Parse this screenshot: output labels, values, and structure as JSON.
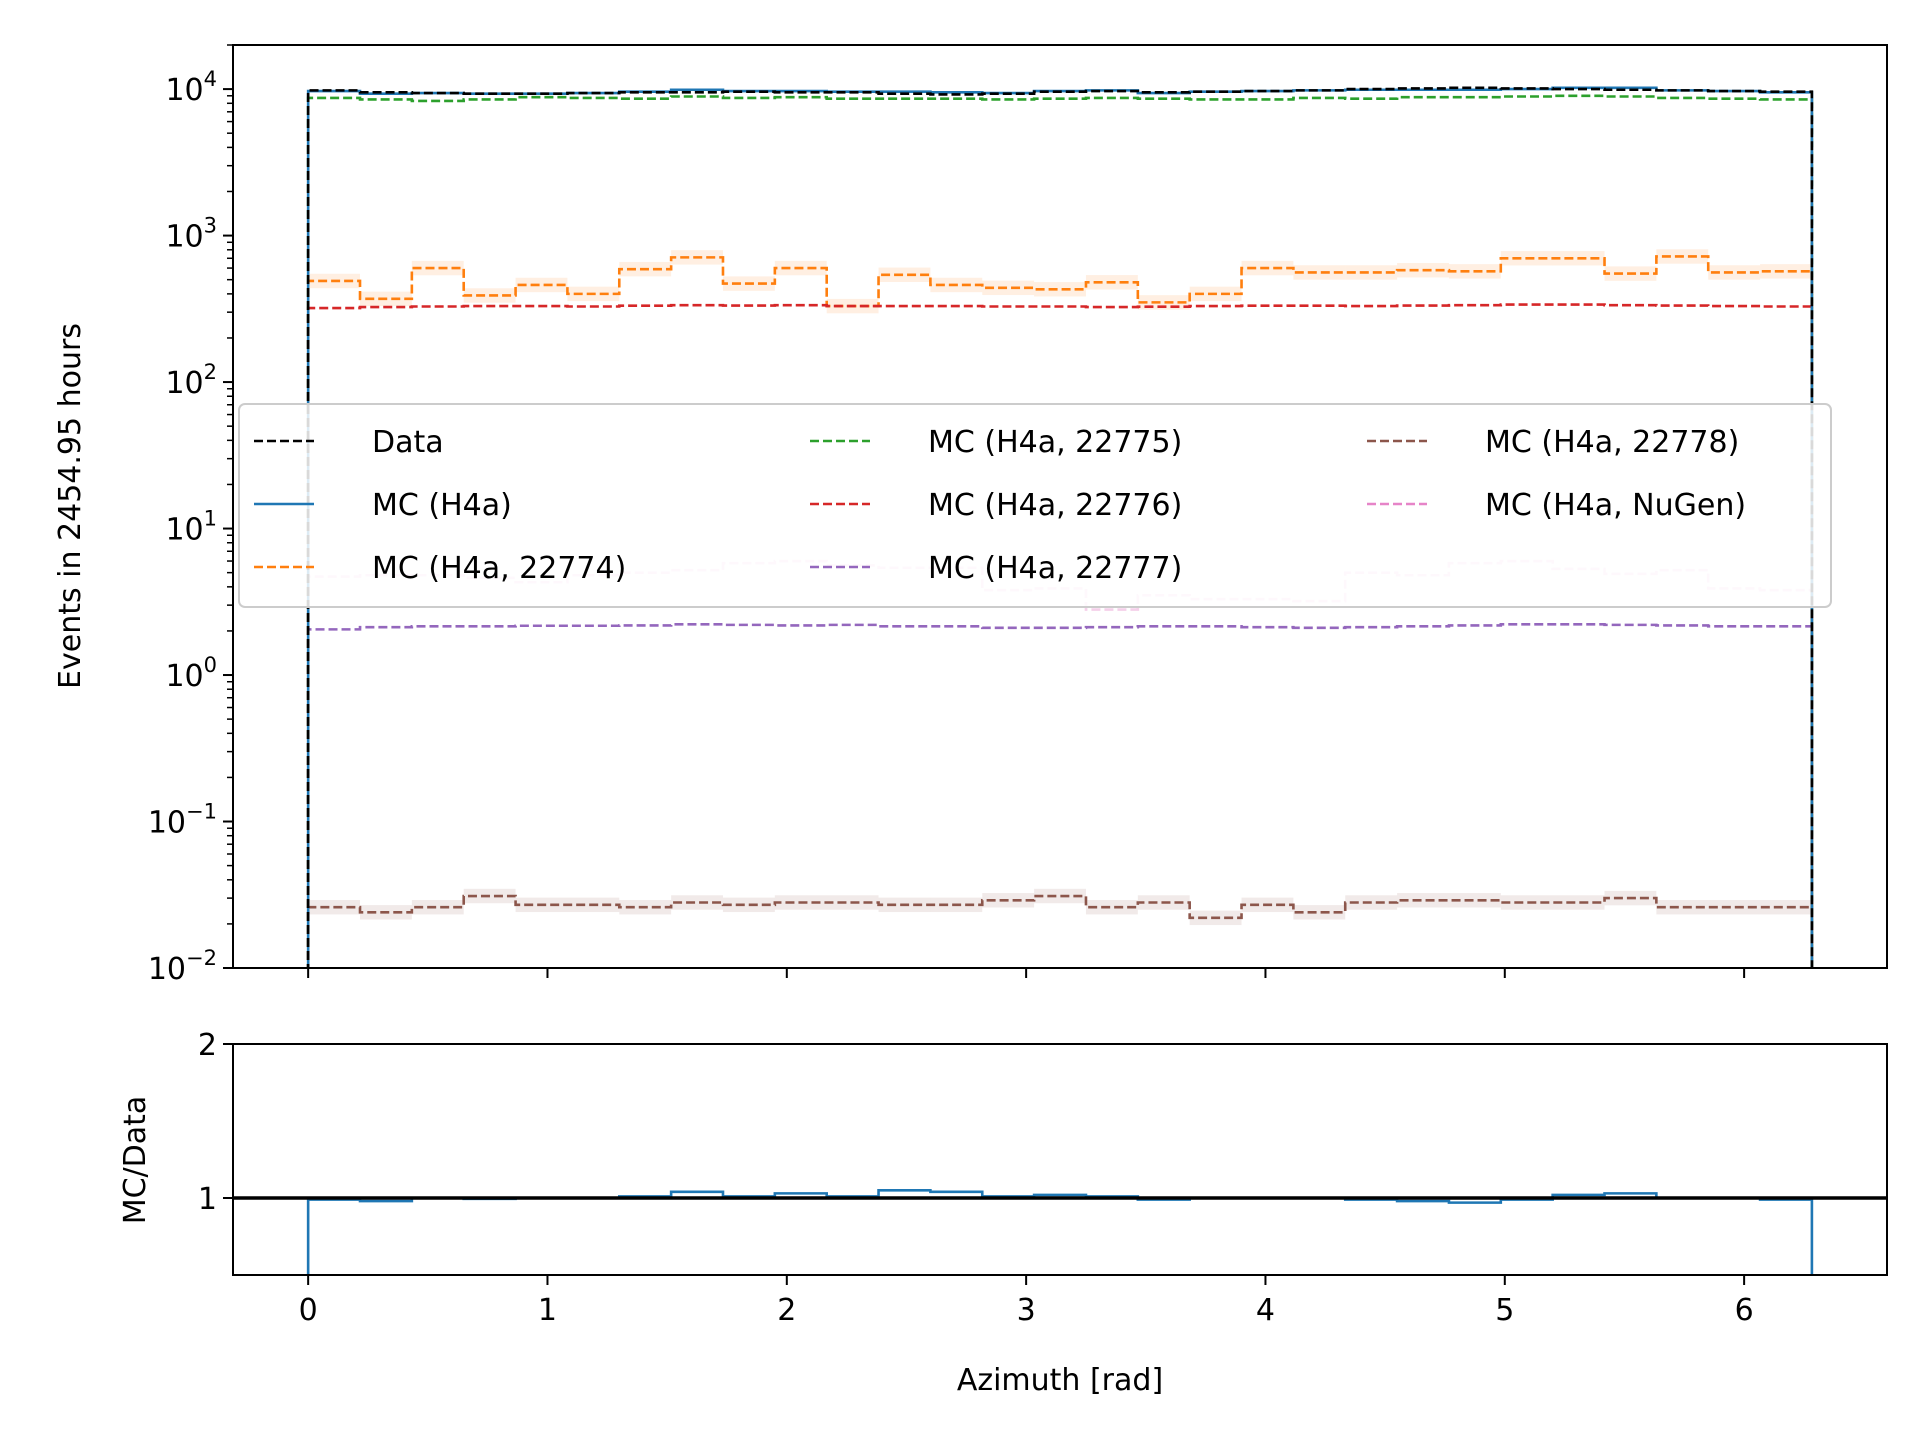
{
  "chart_data": [
    {
      "type": "line",
      "step": true,
      "yscale": "log",
      "xlim": [
        -0.314,
        6.597
      ],
      "ylim": [
        0.01,
        20000
      ],
      "xlabel": "",
      "ylabel": "Events in 2454.95 hours",
      "ytick_labels": [
        {
          "base": "10",
          "exp": "−2",
          "value": 0.01
        },
        {
          "base": "10",
          "exp": "−1",
          "value": 0.1
        },
        {
          "base": "10",
          "exp": "0",
          "value": 1
        },
        {
          "base": "10",
          "exp": "1",
          "value": 10
        },
        {
          "base": "10",
          "exp": "2",
          "value": 100
        },
        {
          "base": "10",
          "exp": "3",
          "value": 1000
        },
        {
          "base": "10",
          "exp": "4",
          "value": 10000
        }
      ],
      "bin_edges": [
        0,
        0.2167,
        0.4333,
        0.65,
        0.8667,
        1.0833,
        1.3,
        1.5167,
        1.7333,
        1.95,
        2.1667,
        2.3833,
        2.6,
        2.8167,
        3.0333,
        3.25,
        3.4667,
        3.6833,
        3.9,
        4.1167,
        4.3333,
        4.55,
        4.7667,
        4.9833,
        5.2,
        5.4167,
        5.6333,
        5.85,
        6.0667,
        6.2832
      ],
      "legend": {
        "placement": "center-left",
        "columns": 3
      },
      "series": [
        {
          "name": "Data",
          "color": "#000000",
          "dash": true,
          "values": [
            9800,
            9500,
            9400,
            9300,
            9300,
            9400,
            9500,
            9500,
            9600,
            9500,
            9500,
            9300,
            9200,
            9300,
            9600,
            9700,
            9500,
            9600,
            9700,
            9800,
            10000,
            10100,
            10200,
            10100,
            10000,
            9900,
            9800,
            9700,
            9600
          ]
        },
        {
          "name": "MC (H4a)",
          "color": "#1f77b4",
          "dash": false,
          "values": [
            9700,
            9300,
            9400,
            9300,
            9300,
            9400,
            9600,
            9900,
            9700,
            9700,
            9600,
            9600,
            9500,
            9400,
            9700,
            9800,
            9400,
            9600,
            9700,
            9800,
            9900,
            9900,
            9900,
            10000,
            10200,
            10200,
            9800,
            9700,
            9500
          ]
        },
        {
          "name": "MC (H4a, 22774)",
          "color": "#ff7f0e",
          "dash": true,
          "band": true,
          "values": [
            490,
            370,
            600,
            390,
            460,
            400,
            590,
            710,
            470,
            600,
            330,
            540,
            460,
            440,
            430,
            480,
            350,
            400,
            600,
            560,
            560,
            580,
            570,
            700,
            700,
            550,
            720,
            560,
            570
          ]
        },
        {
          "name": "MC (H4a, 22775)",
          "color": "#2ca02c",
          "dash": true,
          "values": [
            8700,
            8500,
            8300,
            8500,
            8800,
            8700,
            8600,
            8900,
            8700,
            8800,
            8600,
            8600,
            8600,
            8500,
            8600,
            8700,
            8600,
            8500,
            8500,
            8700,
            8600,
            8800,
            8800,
            8900,
            9000,
            8900,
            8700,
            8600,
            8500
          ]
        },
        {
          "name": "MC (H4a, 22776)",
          "color": "#d62728",
          "dash": true,
          "values": [
            320,
            325,
            328,
            330,
            330,
            328,
            332,
            335,
            333,
            335,
            330,
            330,
            330,
            328,
            328,
            325,
            327,
            330,
            332,
            332,
            330,
            333,
            335,
            338,
            338,
            335,
            333,
            330,
            328
          ]
        },
        {
          "name": "MC (H4a, 22777)",
          "color": "#9467bd",
          "dash": true,
          "values": [
            2.05,
            2.12,
            2.15,
            2.15,
            2.17,
            2.17,
            2.18,
            2.22,
            2.2,
            2.18,
            2.2,
            2.15,
            2.15,
            2.1,
            2.1,
            2.12,
            2.15,
            2.15,
            2.12,
            2.1,
            2.12,
            2.15,
            2.18,
            2.22,
            2.22,
            2.2,
            2.18,
            2.15,
            2.15
          ]
        },
        {
          "name": "MC (H4a, 22778)",
          "color": "#8c564b",
          "dash": true,
          "band": true,
          "values": [
            0.026,
            0.024,
            0.026,
            0.031,
            0.027,
            0.027,
            0.026,
            0.028,
            0.027,
            0.028,
            0.028,
            0.027,
            0.027,
            0.029,
            0.031,
            0.026,
            0.028,
            0.022,
            0.027,
            0.024,
            0.028,
            0.029,
            0.029,
            0.028,
            0.028,
            0.03,
            0.026,
            0.026,
            0.026
          ]
        },
        {
          "name": "MC (H4a, NuGen)",
          "color": "#e377c2",
          "dash": true,
          "faded": true,
          "values": [
            4.7,
            4.8,
            4.8,
            4.6,
            4.3,
            4.8,
            5.0,
            5.2,
            5.8,
            6.0,
            5.6,
            5.4,
            5.4,
            3.8,
            3.9,
            2.8,
            3.5,
            3.3,
            3.3,
            3.2,
            5.0,
            4.8,
            5.8,
            6.0,
            5.3,
            4.9,
            5.2,
            3.9,
            3.8
          ]
        }
      ]
    },
    {
      "type": "line",
      "step": true,
      "xlim": [
        -0.314,
        6.597
      ],
      "ylim": [
        0.5,
        2
      ],
      "xlabel": "Azimuth [rad]",
      "ylabel": "MC/Data",
      "yticks": [
        1,
        2
      ],
      "ytick_labels": [
        "1",
        "2"
      ],
      "xticks": [
        0,
        1,
        2,
        3,
        4,
        5,
        6
      ],
      "xtick_labels": [
        "0",
        "1",
        "2",
        "3",
        "4",
        "5",
        "6"
      ],
      "reference_line": 1,
      "bin_edges": [
        0,
        0.2167,
        0.4333,
        0.65,
        0.8667,
        1.0833,
        1.3,
        1.5167,
        1.7333,
        1.95,
        2.1667,
        2.3833,
        2.6,
        2.8167,
        3.0333,
        3.25,
        3.4667,
        3.6833,
        3.9,
        4.1167,
        4.3333,
        4.55,
        4.7667,
        4.9833,
        5.2,
        5.4167,
        5.6333,
        5.85,
        6.0667,
        6.2832
      ],
      "series": [
        {
          "name": "",
          "color": "#1f77b4",
          "values": [
            0.99,
            0.98,
            1.0,
            0.995,
            1.0,
            1.0,
            1.01,
            1.04,
            1.01,
            1.03,
            1.01,
            1.05,
            1.04,
            1.01,
            1.02,
            1.01,
            0.99,
            1.0,
            1.0,
            1.0,
            0.99,
            0.98,
            0.97,
            0.99,
            1.02,
            1.03,
            1.0,
            1.0,
            0.99
          ]
        }
      ]
    }
  ]
}
